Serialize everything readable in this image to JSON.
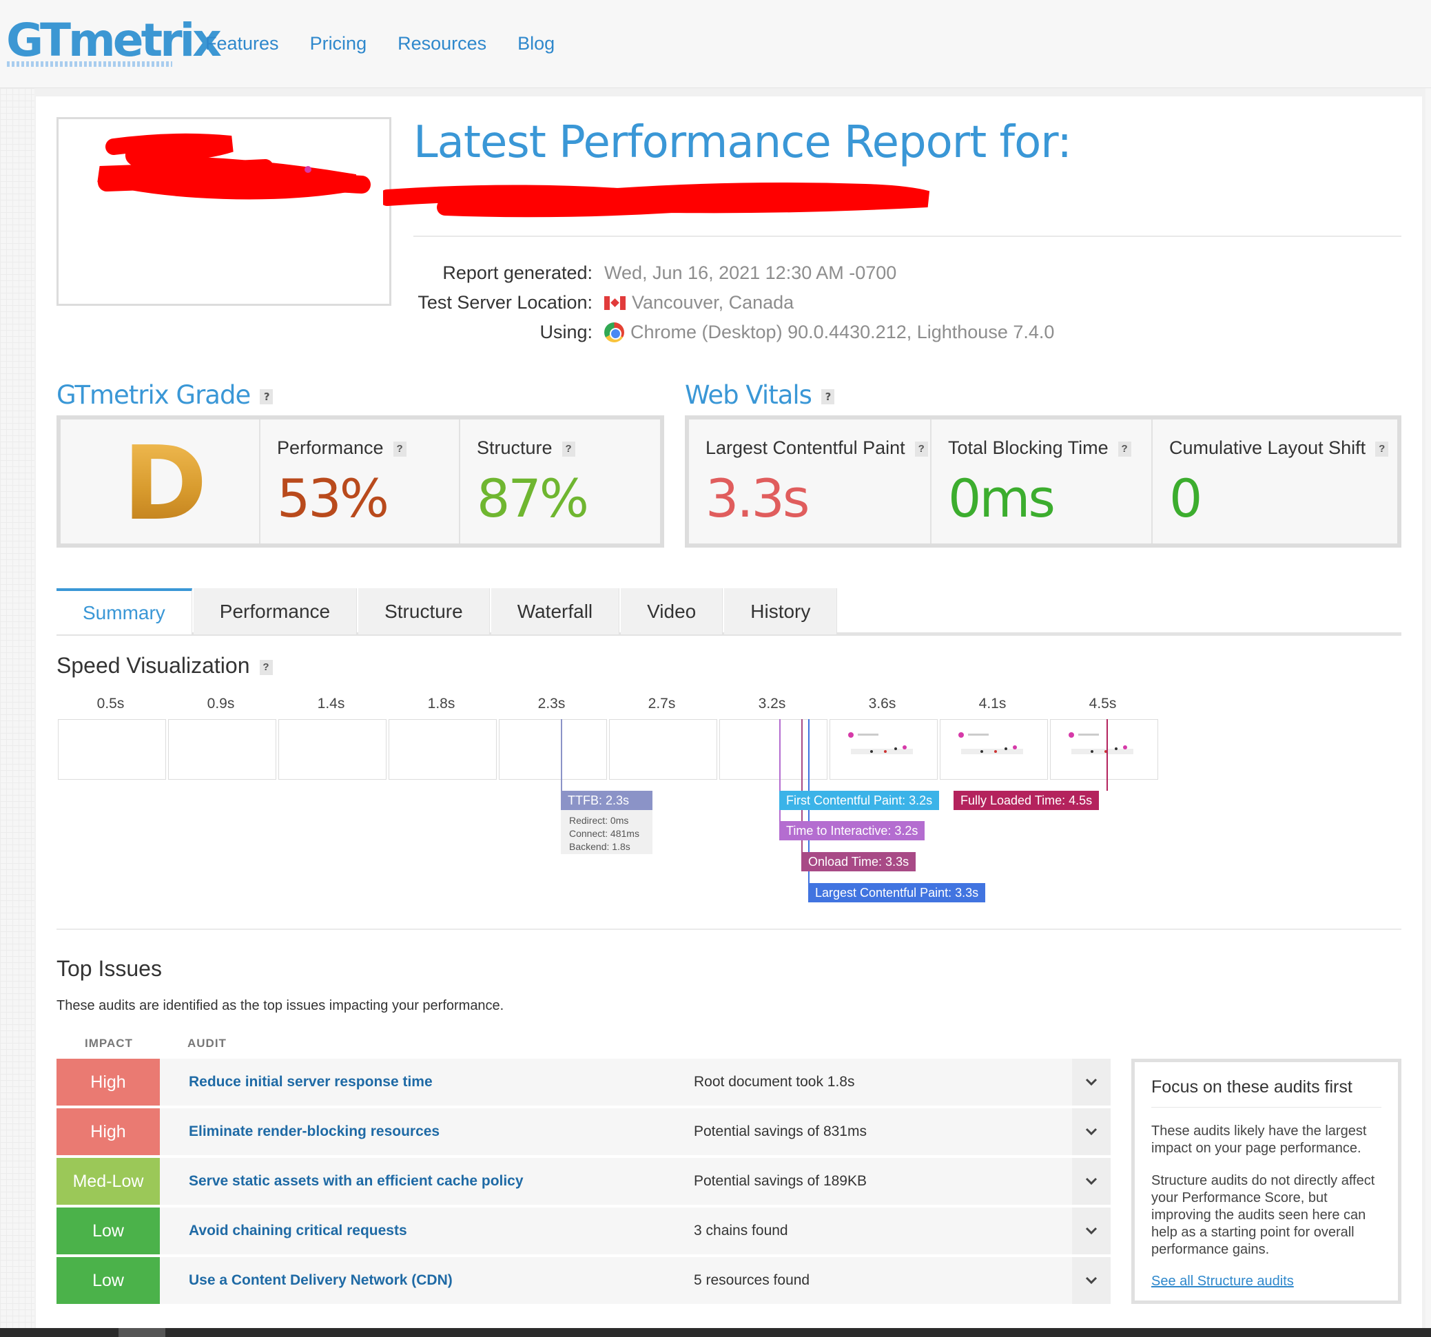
{
  "brand": {
    "logo": "GTmetrix"
  },
  "nav": [
    "Features",
    "Pricing",
    "Resources",
    "Blog"
  ],
  "header": {
    "title": "Latest Performance Report for:",
    "report_generated_label": "Report generated:",
    "report_generated_value": "Wed, Jun 16, 2021 12:30 AM -0700",
    "location_label": "Test Server Location:",
    "location_value": "Vancouver, Canada",
    "using_label": "Using:",
    "using_value": "Chrome (Desktop) 90.0.4430.212, Lighthouse 7.4.0"
  },
  "grade": {
    "heading": "GTmetrix Grade",
    "q": "?",
    "letter": "D",
    "performance_label": "Performance",
    "performance_value": "53%",
    "structure_label": "Structure",
    "structure_value": "87%"
  },
  "vitals": {
    "heading": "Web Vitals",
    "lcp_label": "Largest Contentful Paint",
    "lcp_value": "3.3s",
    "tbt_label": "Total Blocking Time",
    "tbt_value": "0ms",
    "cls_label": "Cumulative Layout Shift",
    "cls_value": "0"
  },
  "tabs": [
    "Summary",
    "Performance",
    "Structure",
    "Waterfall",
    "Video",
    "History"
  ],
  "speed_viz": {
    "heading": "Speed Visualization",
    "frames": [
      "0.5s",
      "0.9s",
      "1.4s",
      "1.8s",
      "2.3s",
      "2.7s",
      "3.2s",
      "3.6s",
      "4.1s",
      "4.5s"
    ],
    "markers": {
      "ttfb": "TTFB: 2.3s",
      "redirect": "Redirect: 0ms",
      "connect": "Connect: 481ms",
      "backend": "Backend: 1.8s",
      "fcp": "First Contentful Paint: 3.2s",
      "flt": "Fully Loaded Time: 4.5s",
      "tti": "Time to Interactive: 3.2s",
      "onload": "Onload Time: 3.3s",
      "lcp": "Largest Contentful Paint: 3.3s"
    }
  },
  "top_issues": {
    "heading": "Top Issues",
    "desc": "These audits are identified as the top issues impacting your performance.",
    "col_impact": "IMPACT",
    "col_audit": "AUDIT",
    "rows": [
      {
        "impact": "High",
        "audit": "Reduce initial server response time",
        "result": "Root document took 1.8s"
      },
      {
        "impact": "High",
        "audit": "Eliminate render-blocking resources",
        "result": "Potential savings of 831ms"
      },
      {
        "impact": "Med-Low",
        "audit": "Serve static assets with an efficient cache policy",
        "result": "Potential savings of 189KB"
      },
      {
        "impact": "Low",
        "audit": "Avoid chaining critical requests",
        "result": "3 chains found"
      },
      {
        "impact": "Low",
        "audit": "Use a Content Delivery Network (CDN)",
        "result": "5 resources found"
      }
    ]
  },
  "focus": {
    "title": "Focus on these audits first",
    "p1": "These audits likely have the largest impact on your page performance.",
    "p2": "Structure audits do not directly affect your Performance Score, but improving the audits seen here can help as a starting point for overall performance gains.",
    "link": "See all Structure audits"
  },
  "colors": {
    "brand_blue": "#3a97d6",
    "performance": "#b94a1c",
    "structure": "#6fb630",
    "lcp": "#e05d5d",
    "good": "#3cad2e",
    "impact_high": "#ea7a72",
    "impact_medlow": "#9bc858",
    "impact_low": "#4bb24a"
  }
}
